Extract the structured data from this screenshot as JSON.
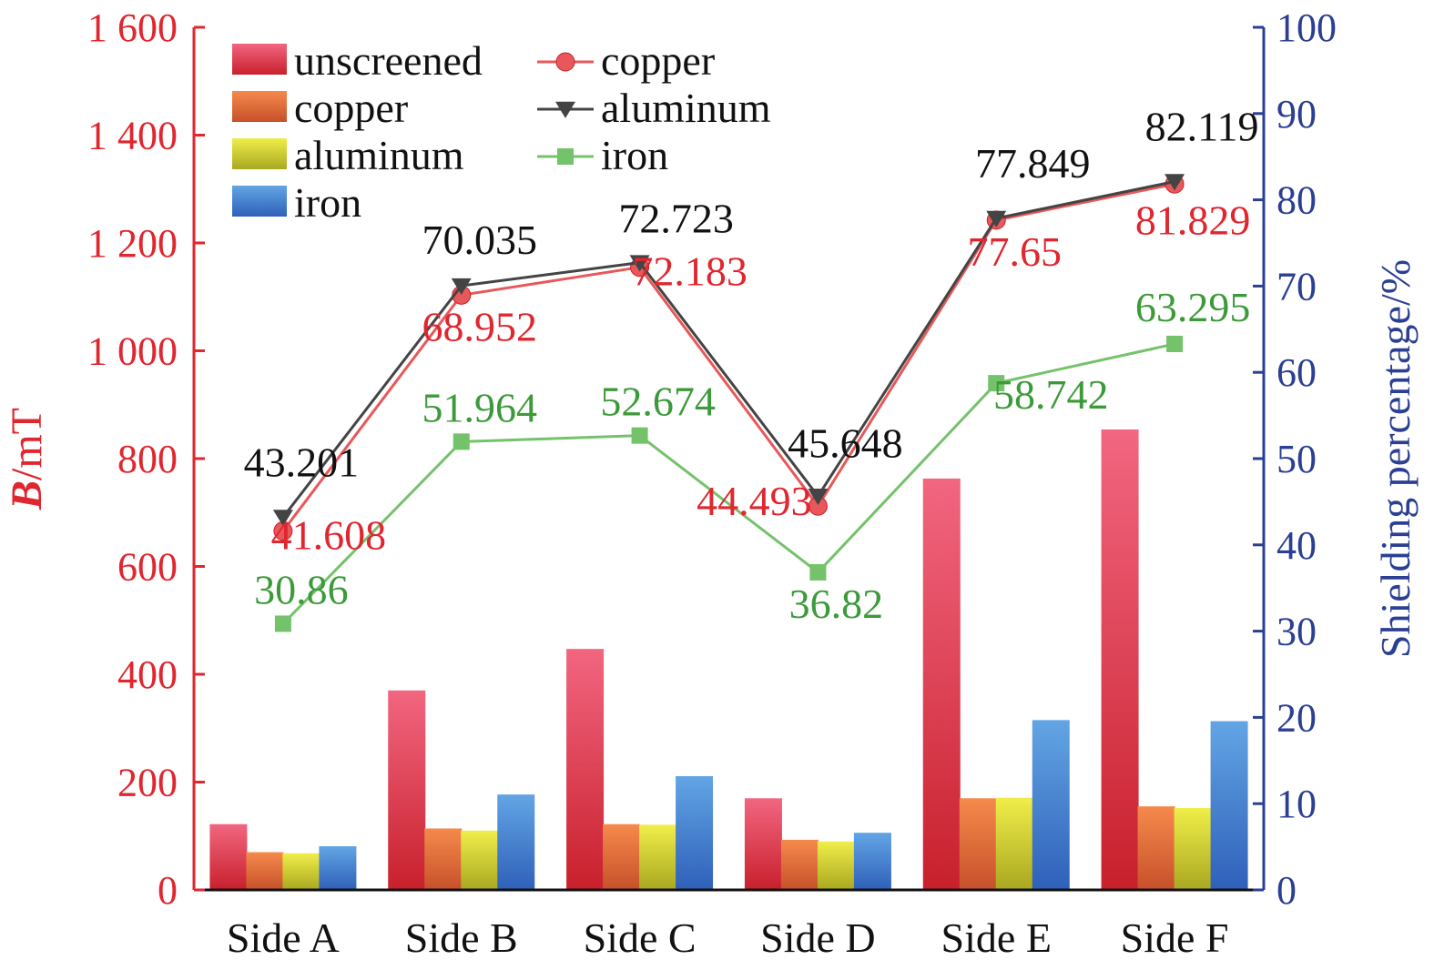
{
  "chart_data": {
    "type": "bar",
    "categories": [
      "Side A",
      "Side B",
      "Side C",
      "Side D",
      "Side E",
      "Side F"
    ],
    "left_axis": {
      "label_bold": "B",
      "label_rest": "/mT",
      "range": [
        0,
        1600
      ],
      "ticks": [
        {
          "value": 0,
          "label": "0"
        },
        {
          "value": 200,
          "label": "200"
        },
        {
          "value": 400,
          "label": "400"
        },
        {
          "value": 600,
          "label": "600"
        },
        {
          "value": 800,
          "label": "800"
        },
        {
          "value": 1000,
          "label": "1 000"
        },
        {
          "value": 1200,
          "label": "1 200"
        },
        {
          "value": 1400,
          "label": "1 400"
        },
        {
          "value": 1600,
          "label": "1 600"
        }
      ],
      "color": "#e0262e"
    },
    "right_axis": {
      "label": "Shielding percentage/%",
      "range": [
        0,
        100
      ],
      "ticks": [
        {
          "value": 0,
          "label": "0"
        },
        {
          "value": 10,
          "label": "10"
        },
        {
          "value": 20,
          "label": "20"
        },
        {
          "value": 30,
          "label": "30"
        },
        {
          "value": 40,
          "label": "40"
        },
        {
          "value": 50,
          "label": "50"
        },
        {
          "value": 60,
          "label": "60"
        },
        {
          "value": 70,
          "label": "70"
        },
        {
          "value": 80,
          "label": "80"
        },
        {
          "value": 90,
          "label": "90"
        },
        {
          "value": 100,
          "label": "100"
        }
      ],
      "color": "#2b3f93"
    },
    "bar_series": [
      {
        "name": "unscreened",
        "values": [
          122,
          370,
          447,
          170,
          763,
          854
        ],
        "color_top": "#f26680",
        "color_bottom": "#c8202c"
      },
      {
        "name": "copper",
        "values": [
          70,
          114,
          122,
          93,
          170,
          155
        ],
        "color_top": "#f58a4c",
        "color_bottom": "#c7502a"
      },
      {
        "name": "aluminum",
        "values": [
          68,
          110,
          121,
          90,
          171,
          152
        ],
        "color_top": "#f0ee4a",
        "color_bottom": "#a9a820"
      },
      {
        "name": "iron",
        "values": [
          81,
          177,
          211,
          106,
          315,
          313
        ],
        "color_top": "#62a5e4",
        "color_bottom": "#2f60b9"
      }
    ],
    "line_series": [
      {
        "name": "copper",
        "values": [
          41.608,
          68.952,
          72.183,
          44.493,
          77.65,
          81.829
        ],
        "labels": [
          "41.608",
          "68.952",
          "72.183",
          "44.493",
          "77.65",
          "81.829"
        ],
        "color": "#e8585a",
        "label_color": "#e0262e",
        "marker": "circle"
      },
      {
        "name": "aluminum",
        "values": [
          43.201,
          70.035,
          72.723,
          45.648,
          77.849,
          82.119
        ],
        "labels": [
          "43.201",
          "70.035",
          "72.723",
          "45.648",
          "77.849",
          "82.119"
        ],
        "color": "#444444",
        "label_color": "#111111",
        "marker": "triangle-down"
      },
      {
        "name": "iron",
        "values": [
          30.86,
          51.964,
          52.674,
          36.82,
          58.742,
          63.295
        ],
        "labels": [
          "30.86",
          "51.964",
          "52.674",
          "36.82",
          "58.742",
          "63.295"
        ],
        "color": "#74c26a",
        "label_color": "#3d9a3a",
        "marker": "square"
      }
    ],
    "legend": {
      "placement": "top-left",
      "bars": [
        "unscreened",
        "copper",
        "aluminum",
        "iron"
      ],
      "lines": [
        "copper",
        "aluminum",
        "iron"
      ]
    },
    "grid": false
  }
}
